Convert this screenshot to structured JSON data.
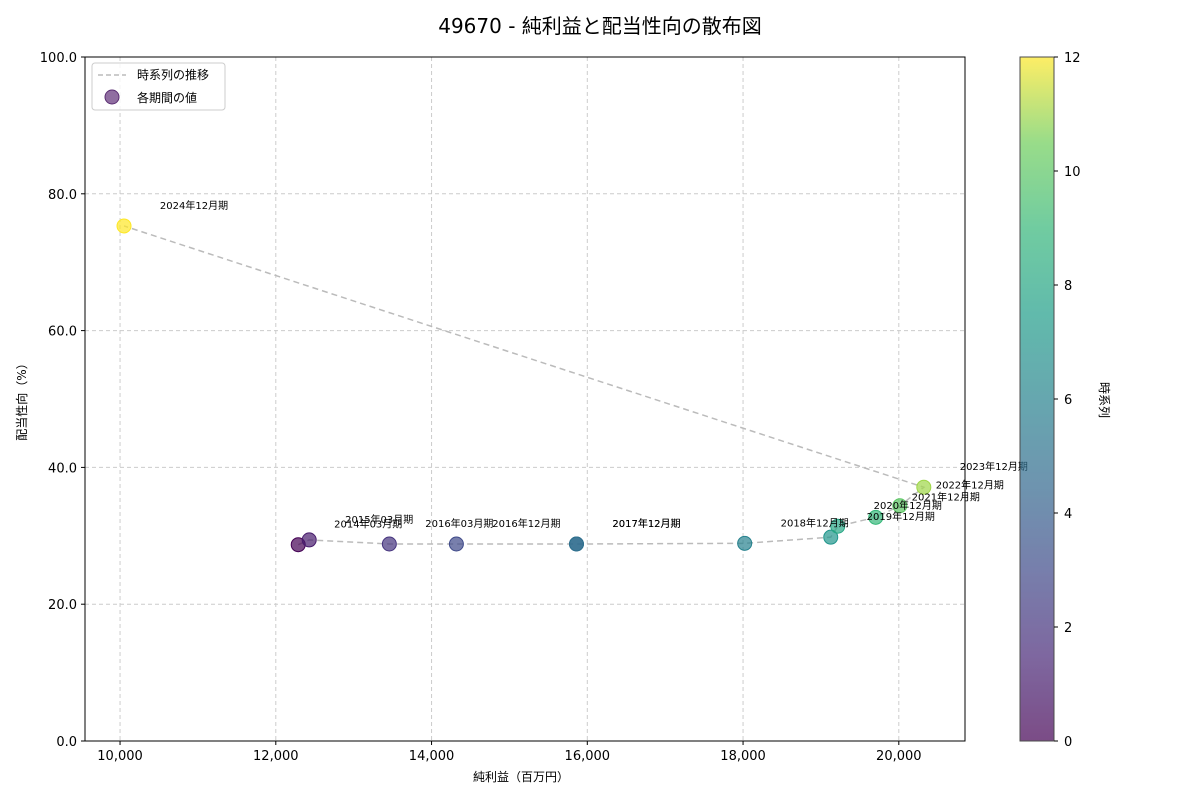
{
  "title": "49670 - 純利益と配当性向の散布図",
  "chart_data": {
    "type": "scatter",
    "title": "49670 - 純利益と配当性向の散布図",
    "xlabel": "純利益（百万円）",
    "ylabel": "配当性向（%）",
    "xlim": [
      9550,
      20850
    ],
    "ylim": [
      0,
      100
    ],
    "x_ticks": [
      10000,
      12000,
      14000,
      16000,
      18000,
      20000
    ],
    "x_tick_labels": [
      "10,000",
      "12,000",
      "14,000",
      "16,000",
      "18,000",
      "20,000"
    ],
    "y_ticks": [
      0,
      20,
      40,
      60,
      80,
      100
    ],
    "y_tick_labels": [
      "0.0",
      "20.0",
      "40.0",
      "60.0",
      "80.0",
      "100.0"
    ],
    "grid": true,
    "legend_position": "upper left",
    "legend": [
      {
        "label": "時系列の推移",
        "style": "dashed-line",
        "color": "#bbbbbb"
      },
      {
        "label": "各期間の値",
        "style": "marker",
        "color": "#6b3d82"
      }
    ],
    "colorbar": {
      "label": "時系列",
      "min": 0,
      "max": 12,
      "ticks": [
        0,
        2,
        4,
        6,
        8,
        10,
        12
      ],
      "colormap": "viridis"
    },
    "points": [
      {
        "label": "2014年03月期",
        "x": 12288,
        "y": 28.7,
        "c": 0
      },
      {
        "label": "2015年03月期",
        "x": 12429,
        "y": 29.4,
        "c": 1
      },
      {
        "label": "2016年03月期",
        "x": 13458,
        "y": 28.8,
        "c": 2
      },
      {
        "label": "2016年12月期",
        "x": 14319,
        "y": 28.8,
        "c": 3
      },
      {
        "label": "2017年12月期",
        "x": 15861,
        "y": 28.8,
        "c": 4
      },
      {
        "label": "2017年12月期",
        "x": 15861,
        "y": 28.8,
        "c": 5
      },
      {
        "label": "2018年12月期",
        "x": 18021,
        "y": 28.9,
        "c": 6
      },
      {
        "label": "2019年12月期",
        "x": 19126,
        "y": 29.8,
        "c": 7
      },
      {
        "label": "2020年12月期",
        "x": 19216,
        "y": 31.4,
        "c": 8
      },
      {
        "label": "2021年12月期",
        "x": 19704,
        "y": 32.7,
        "c": 9
      },
      {
        "label": "2022年12月期",
        "x": 20013,
        "y": 34.4,
        "c": 10
      },
      {
        "label": "2023年12月期",
        "x": 20321,
        "y": 37.1,
        "c": 11
      },
      {
        "label": "2024年12月期",
        "x": 10051,
        "y": 75.3,
        "c": 12
      }
    ]
  }
}
